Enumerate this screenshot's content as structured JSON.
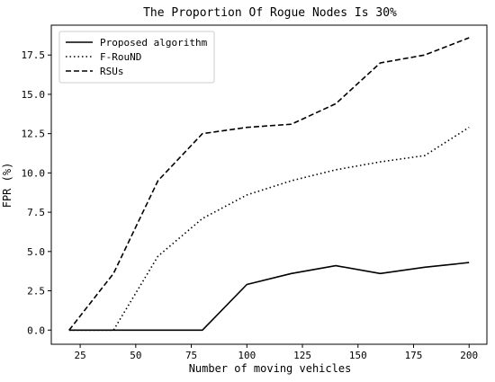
{
  "chart_data": {
    "type": "line",
    "title": "The Proportion Of Rogue Nodes Is 30%",
    "xlabel": "Number of moving vehicles",
    "ylabel": "FPR (%)",
    "xlim": [
      12,
      208
    ],
    "ylim": [
      -0.9,
      19.4
    ],
    "x_ticks": [
      25,
      50,
      75,
      100,
      125,
      150,
      175,
      200
    ],
    "y_ticks": [
      0.0,
      2.5,
      5.0,
      7.5,
      10.0,
      12.5,
      15.0,
      17.5
    ],
    "grid": false,
    "legend_position": "top-left",
    "x": [
      20,
      40,
      60,
      80,
      100,
      120,
      140,
      160,
      180,
      200
    ],
    "series": [
      {
        "name": "Proposed algorithm",
        "style": "solid",
        "values": [
          0,
          0,
          0,
          0,
          2.9,
          3.6,
          4.1,
          3.6,
          4.0,
          4.3
        ]
      },
      {
        "name": "F-RouND",
        "style": "dotted",
        "values": [
          0,
          0,
          4.7,
          7.1,
          8.6,
          9.5,
          10.2,
          10.7,
          11.1,
          12.9
        ]
      },
      {
        "name": "RSUs",
        "style": "dashed",
        "values": [
          0,
          3.6,
          9.5,
          12.5,
          12.9,
          13.1,
          14.4,
          17.0,
          17.5,
          18.6
        ]
      }
    ],
    "colors": {
      "line": "#000000",
      "frame": "#000000",
      "background": "#ffffff"
    }
  }
}
